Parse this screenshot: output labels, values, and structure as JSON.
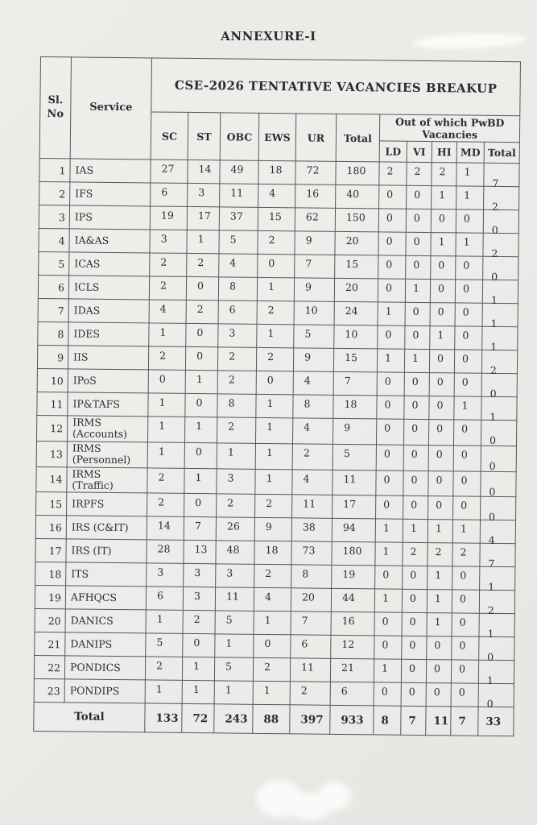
{
  "annexure": {
    "title": "ANNEXURE-I"
  },
  "table": {
    "title": "CSE-2026 TENTATIVE VACANCIES BREAKUP",
    "headers": {
      "sl_no": "Sl.\nNo",
      "service": "Service",
      "category_columns": [
        "SC",
        "ST",
        "OBC",
        "EWS",
        "UR",
        "Total"
      ],
      "pwbd_group_label": "Out of which PwBD\nVacancies",
      "pwbd_columns": [
        "LD",
        "VI",
        "HI",
        "MD",
        "Total"
      ]
    },
    "rows": [
      {
        "sl": "1",
        "service": "IAS",
        "values": [
          "27",
          "14",
          "49",
          "18",
          "72",
          "180",
          "2",
          "2",
          "2",
          "1",
          "7"
        ]
      },
      {
        "sl": "2",
        "service": "IFS",
        "values": [
          "6",
          "3",
          "11",
          "4",
          "16",
          "40",
          "0",
          "0",
          "1",
          "1",
          "2"
        ]
      },
      {
        "sl": "3",
        "service": "IPS",
        "values": [
          "19",
          "17",
          "37",
          "15",
          "62",
          "150",
          "0",
          "0",
          "0",
          "0",
          "0"
        ]
      },
      {
        "sl": "4",
        "service": "IA&AS",
        "values": [
          "3",
          "1",
          "5",
          "2",
          "9",
          "20",
          "0",
          "0",
          "1",
          "1",
          "2"
        ]
      },
      {
        "sl": "5",
        "service": "ICAS",
        "values": [
          "2",
          "2",
          "4",
          "0",
          "7",
          "15",
          "0",
          "0",
          "0",
          "0",
          "0"
        ]
      },
      {
        "sl": "6",
        "service": "ICLS",
        "values": [
          "2",
          "0",
          "8",
          "1",
          "9",
          "20",
          "0",
          "1",
          "0",
          "0",
          "1"
        ]
      },
      {
        "sl": "7",
        "service": "IDAS",
        "values": [
          "4",
          "2",
          "6",
          "2",
          "10",
          "24",
          "1",
          "0",
          "0",
          "0",
          "1"
        ]
      },
      {
        "sl": "8",
        "service": "IDES",
        "values": [
          "1",
          "0",
          "3",
          "1",
          "5",
          "10",
          "0",
          "0",
          "1",
          "0",
          "1"
        ]
      },
      {
        "sl": "9",
        "service": "IIS",
        "values": [
          "2",
          "0",
          "2",
          "2",
          "9",
          "15",
          "1",
          "1",
          "0",
          "0",
          "2"
        ]
      },
      {
        "sl": "10",
        "service": "IPoS",
        "values": [
          "0",
          "1",
          "2",
          "0",
          "4",
          "7",
          "0",
          "0",
          "0",
          "0",
          "0"
        ]
      },
      {
        "sl": "11",
        "service": "IP&TAFS",
        "values": [
          "1",
          "0",
          "8",
          "1",
          "8",
          "18",
          "0",
          "0",
          "0",
          "1",
          "1"
        ]
      },
      {
        "sl": "12",
        "service": "IRMS\n(Accounts)",
        "values": [
          "1",
          "1",
          "2",
          "1",
          "4",
          "9",
          "0",
          "0",
          "0",
          "0",
          "0"
        ]
      },
      {
        "sl": "13",
        "service": "IRMS\n(Personnel)",
        "values": [
          "1",
          "0",
          "1",
          "1",
          "2",
          "5",
          "0",
          "0",
          "0",
          "0",
          "0"
        ]
      },
      {
        "sl": "14",
        "service": "IRMS\n(Traffic)",
        "values": [
          "2",
          "1",
          "3",
          "1",
          "4",
          "11",
          "0",
          "0",
          "0",
          "0",
          "0"
        ]
      },
      {
        "sl": "15",
        "service": "IRPFS",
        "values": [
          "2",
          "0",
          "2",
          "2",
          "11",
          "17",
          "0",
          "0",
          "0",
          "0",
          "0"
        ]
      },
      {
        "sl": "16",
        "service": "IRS (C&IT)",
        "values": [
          "14",
          "7",
          "26",
          "9",
          "38",
          "94",
          "1",
          "1",
          "1",
          "1",
          "4"
        ]
      },
      {
        "sl": "17",
        "service": "IRS (IT)",
        "values": [
          "28",
          "13",
          "48",
          "18",
          "73",
          "180",
          "1",
          "2",
          "2",
          "2",
          "7"
        ]
      },
      {
        "sl": "18",
        "service": "ITS",
        "values": [
          "3",
          "3",
          "3",
          "2",
          "8",
          "19",
          "0",
          "0",
          "1",
          "0",
          "1"
        ]
      },
      {
        "sl": "19",
        "service": "AFHQCS",
        "values": [
          "6",
          "3",
          "11",
          "4",
          "20",
          "44",
          "1",
          "0",
          "1",
          "0",
          "2"
        ]
      },
      {
        "sl": "20",
        "service": "DANICS",
        "values": [
          "1",
          "2",
          "5",
          "1",
          "7",
          "16",
          "0",
          "0",
          "1",
          "0",
          "1"
        ]
      },
      {
        "sl": "21",
        "service": "DANIPS",
        "values": [
          "5",
          "0",
          "1",
          "0",
          "6",
          "12",
          "0",
          "0",
          "0",
          "0",
          "0"
        ]
      },
      {
        "sl": "22",
        "service": "PONDICS",
        "values": [
          "2",
          "1",
          "5",
          "2",
          "11",
          "21",
          "1",
          "0",
          "0",
          "0",
          "1"
        ]
      },
      {
        "sl": "23",
        "service": "PONDIPS",
        "values": [
          "1",
          "1",
          "1",
          "1",
          "2",
          "6",
          "0",
          "0",
          "0",
          "0",
          "0"
        ]
      }
    ],
    "total_row": {
      "label": "Total",
      "values": [
        "133",
        "72",
        "243",
        "88",
        "397",
        "933",
        "8",
        "7",
        "11",
        "7",
        "33"
      ]
    }
  }
}
